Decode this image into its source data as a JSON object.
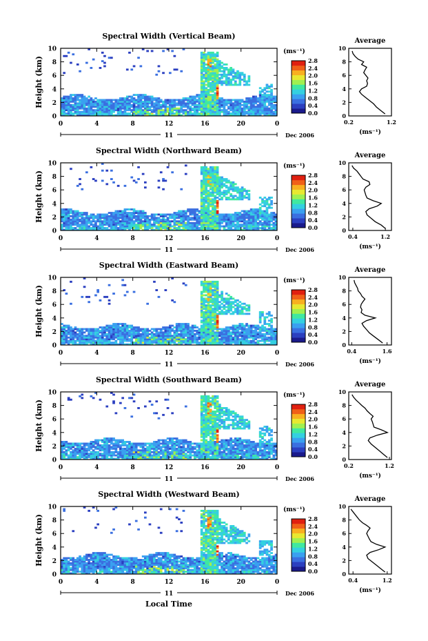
{
  "figure": {
    "month_label": "Dec 2006",
    "day_label": "11",
    "xlabel": "Local Time",
    "colorbar_unit": "(ms⁻¹)",
    "colorbar_ticks": [
      "0.0",
      "0.4",
      "0.8",
      "1.2",
      "1.6",
      "2.0",
      "2.4",
      "2.8"
    ],
    "colorbar_colors": [
      "#1a1a8c",
      "#2b3fc0",
      "#3a6fe0",
      "#3aa0f0",
      "#34d0e0",
      "#40e8a0",
      "#a0f050",
      "#e8e830",
      "#f8b020",
      "#f06018",
      "#e02010"
    ],
    "average_title": "Average",
    "average_xlabel": "(ms⁻¹)"
  },
  "chart_data": [
    {
      "type": "heatmap",
      "title": "Spectral Width (Vertical Beam)",
      "xlabel": "Local Time",
      "ylabel": "Height (km)",
      "x_ticks": [
        "0",
        "4",
        "8",
        "12",
        "16",
        "20",
        "0"
      ],
      "y_ticks": [
        "0",
        "2",
        "4",
        "6",
        "8",
        "10"
      ],
      "xlim": [
        0,
        24
      ],
      "ylim": [
        0,
        10
      ],
      "value_range": [
        0.0,
        2.8
      ],
      "profile": {
        "title": "Average",
        "xlabel": "(ms⁻¹)",
        "x_ticks": [
          "0.2",
          "1.2"
        ],
        "xlim": [
          0.2,
          1.2
        ],
        "y_ticks": [
          "0",
          "2",
          "4",
          "6",
          "8",
          "10"
        ],
        "height": [
          0.3,
          0.8,
          1.3,
          1.8,
          2.3,
          2.8,
          3.2,
          3.6,
          4.0,
          4.4,
          4.8,
          5.2,
          5.6,
          6.0,
          6.4,
          6.8,
          7.2,
          7.6,
          8.0,
          8.4,
          8.8,
          9.2,
          9.6
        ],
        "value": [
          1.05,
          0.95,
          0.85,
          0.78,
          0.68,
          0.58,
          0.5,
          0.45,
          0.5,
          0.62,
          0.64,
          0.62,
          0.65,
          0.6,
          0.55,
          0.58,
          0.62,
          0.5,
          0.55,
          0.42,
          0.35,
          0.3,
          0.28
        ]
      }
    },
    {
      "type": "heatmap",
      "title": "Spectral Width (Northward Beam)",
      "xlabel": "Local Time",
      "ylabel": "Height (km)",
      "x_ticks": [
        "0",
        "4",
        "8",
        "12",
        "16",
        "20",
        "0"
      ],
      "y_ticks": [
        "0",
        "2",
        "4",
        "6",
        "8",
        "10"
      ],
      "xlim": [
        0,
        24
      ],
      "ylim": [
        0,
        10
      ],
      "value_range": [
        0.0,
        2.8
      ],
      "profile": {
        "title": "Average",
        "xlabel": "(ms⁻¹)",
        "x_ticks": [
          "0.4",
          "1.2"
        ],
        "xlim": [
          0.3,
          1.35
        ],
        "y_ticks": [
          "0",
          "2",
          "4",
          "6",
          "8",
          "10"
        ],
        "height": [
          0.3,
          0.8,
          1.3,
          1.8,
          2.3,
          2.8,
          3.2,
          3.6,
          4.0,
          4.4,
          4.8,
          5.2,
          5.6,
          6.0,
          6.4,
          6.8,
          7.2,
          7.6,
          8.0,
          8.4,
          8.8,
          9.2,
          9.6
        ],
        "value": [
          1.2,
          1.1,
          0.95,
          0.85,
          0.75,
          0.72,
          0.8,
          1.0,
          1.1,
          0.9,
          0.75,
          0.72,
          0.7,
          0.68,
          0.72,
          0.82,
          0.8,
          0.65,
          0.6,
          0.55,
          0.5,
          0.42,
          0.38
        ]
      }
    },
    {
      "type": "heatmap",
      "title": "Spectral Width (Eastward Beam)",
      "xlabel": "Local Time",
      "ylabel": "Height (km)",
      "x_ticks": [
        "0",
        "4",
        "8",
        "12",
        "16",
        "20",
        "0"
      ],
      "y_ticks": [
        "0",
        "2",
        "4",
        "6",
        "8",
        "10"
      ],
      "xlim": [
        0,
        24
      ],
      "ylim": [
        0,
        10
      ],
      "value_range": [
        0.0,
        2.8
      ],
      "profile": {
        "title": "Average",
        "xlabel": "(ms⁻¹)",
        "x_ticks": [
          "0.4",
          "1.6"
        ],
        "xlim": [
          0.3,
          1.75
        ],
        "y_ticks": [
          "0",
          "2",
          "4",
          "6",
          "8",
          "10"
        ],
        "height": [
          0.3,
          0.8,
          1.3,
          1.8,
          2.3,
          2.8,
          3.2,
          3.6,
          4.0,
          4.4,
          4.8,
          5.2,
          5.6,
          6.0,
          6.4,
          6.8,
          7.2,
          7.6,
          8.0,
          8.4,
          8.8,
          9.2,
          9.6
        ],
        "value": [
          1.45,
          1.3,
          1.15,
          1.0,
          0.9,
          0.8,
          0.75,
          0.9,
          1.2,
          0.85,
          0.72,
          0.75,
          0.7,
          0.72,
          0.78,
          0.85,
          0.75,
          0.7,
          0.62,
          0.6,
          0.55,
          0.5,
          0.48
        ]
      }
    },
    {
      "type": "heatmap",
      "title": "Spectral Width (Southward Beam)",
      "xlabel": "Local Time",
      "ylabel": "Height (km)",
      "x_ticks": [
        "0",
        "4",
        "8",
        "12",
        "16",
        "20",
        "0"
      ],
      "y_ticks": [
        "0",
        "2",
        "4",
        "6",
        "8",
        "10"
      ],
      "xlim": [
        0,
        24
      ],
      "ylim": [
        0,
        10
      ],
      "value_range": [
        0.0,
        2.8
      ],
      "profile": {
        "title": "Average",
        "xlabel": "(ms⁻¹)",
        "x_ticks": [
          "0.2",
          "1.2"
        ],
        "xlim": [
          0.2,
          1.25
        ],
        "y_ticks": [
          "0",
          "2",
          "4",
          "6",
          "8",
          "10"
        ],
        "height": [
          0.3,
          0.8,
          1.3,
          1.8,
          2.3,
          2.8,
          3.2,
          3.6,
          4.0,
          4.4,
          4.8,
          5.2,
          5.6,
          6.0,
          6.4,
          6.8,
          7.2,
          7.6,
          8.0,
          8.4,
          8.8,
          9.2,
          9.6
        ],
        "value": [
          1.15,
          1.05,
          0.95,
          0.85,
          0.75,
          0.68,
          0.72,
          0.9,
          1.15,
          1.0,
          0.82,
          0.8,
          0.78,
          0.75,
          0.8,
          0.72,
          0.65,
          0.6,
          0.52,
          0.45,
          0.38,
          0.32,
          0.28
        ]
      }
    },
    {
      "type": "heatmap",
      "title": "Spectral Width (Westward Beam)",
      "xlabel": "Local Time",
      "ylabel": "Height (km)",
      "x_ticks": [
        "0",
        "4",
        "8",
        "12",
        "16",
        "20",
        "0"
      ],
      "y_ticks": [
        "0",
        "2",
        "4",
        "6",
        "8",
        "10"
      ],
      "xlim": [
        0,
        24
      ],
      "ylim": [
        0,
        10
      ],
      "value_range": [
        0.0,
        2.8
      ],
      "profile": {
        "title": "Average",
        "xlabel": "(ms⁻¹)",
        "x_ticks": [
          "0.4",
          "1.2"
        ],
        "xlim": [
          0.3,
          1.3
        ],
        "y_ticks": [
          "0",
          "2",
          "4",
          "6",
          "8",
          "10"
        ],
        "height": [
          0.3,
          0.8,
          1.3,
          1.8,
          2.3,
          2.8,
          3.2,
          3.6,
          4.0,
          4.4,
          4.8,
          5.2,
          5.6,
          6.0,
          6.4,
          6.8,
          7.2,
          7.6,
          8.0,
          8.4,
          8.8,
          9.2,
          9.6
        ],
        "value": [
          1.15,
          1.05,
          0.95,
          0.85,
          0.75,
          0.72,
          0.8,
          1.0,
          1.15,
          0.95,
          0.82,
          0.78,
          0.75,
          0.72,
          0.75,
          0.8,
          0.72,
          0.62,
          0.55,
          0.5,
          0.45,
          0.4,
          0.35
        ]
      }
    }
  ]
}
